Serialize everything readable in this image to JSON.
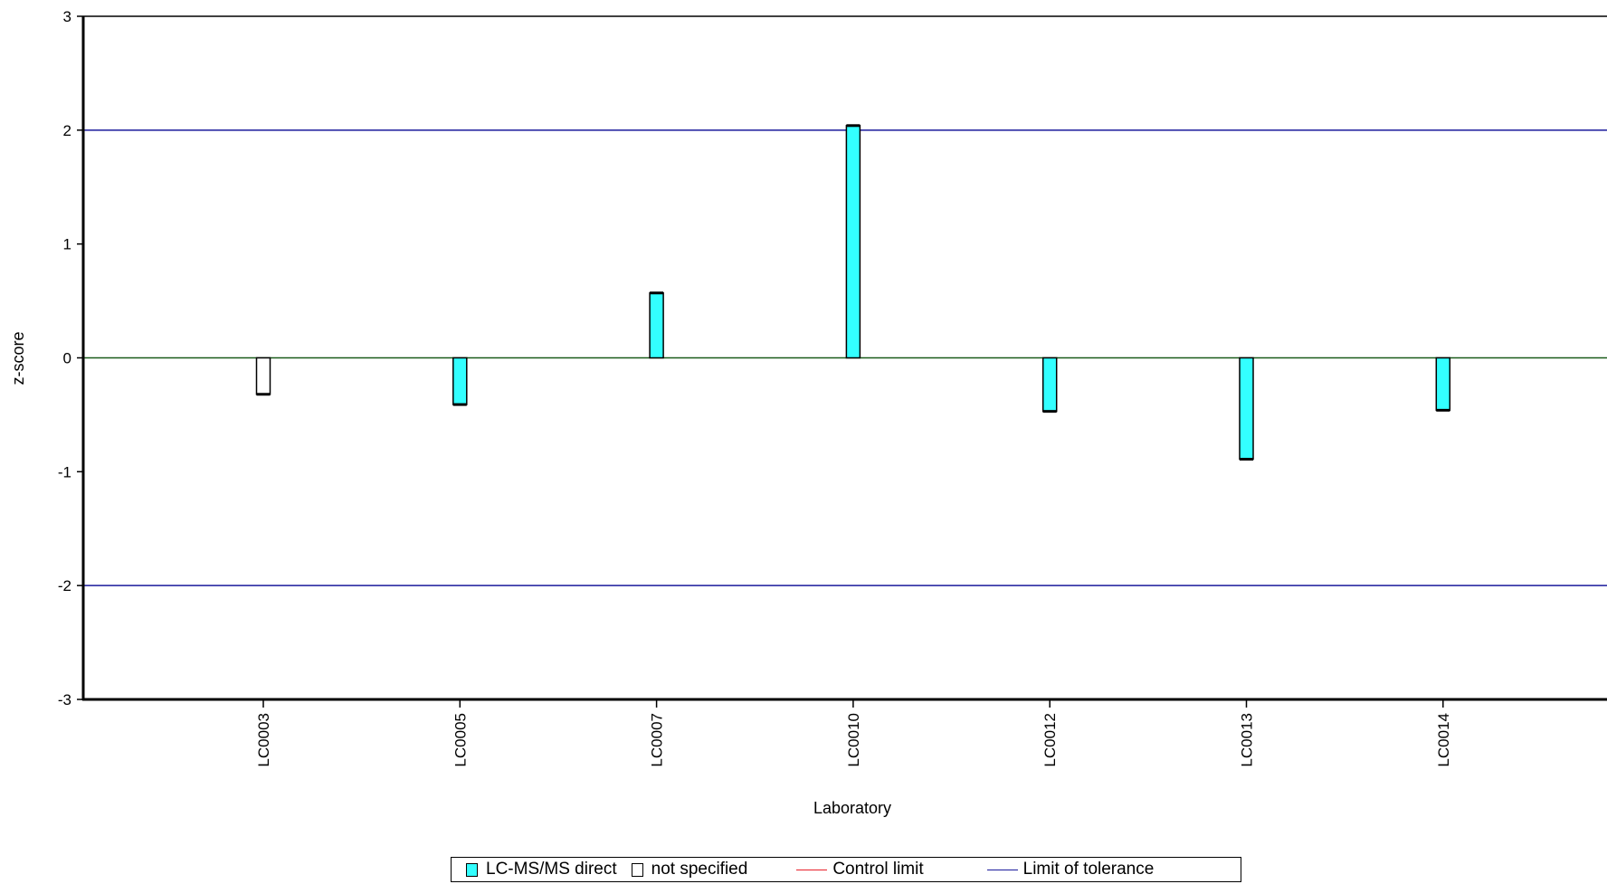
{
  "chart_data": {
    "type": "bar",
    "xlabel": "Laboratory",
    "ylabel": "z-score",
    "ylim": [
      -3,
      3
    ],
    "yticks": [
      "3",
      "2",
      "1",
      "0",
      "-1",
      "-2",
      "-3"
    ],
    "categories": [
      "LC0003",
      "LC0005",
      "LC0007",
      "LC0010",
      "LC0012",
      "LC0013",
      "LC0014"
    ],
    "values": [
      -0.32,
      -0.41,
      0.57,
      2.04,
      -0.47,
      -0.89,
      -0.46
    ],
    "methods": [
      "not specified",
      "LC-MS/MS direct",
      "LC-MS/MS direct",
      "LC-MS/MS direct",
      "LC-MS/MS direct",
      "LC-MS/MS direct",
      "LC-MS/MS direct"
    ],
    "reference_lines": [
      {
        "name": "Limit of tolerance",
        "values": [
          2,
          -2
        ],
        "color": "#1a1a9c"
      }
    ],
    "legend": {
      "placement": "bottom",
      "entries": [
        {
          "label": "LC-MS/MS direct",
          "kind": "box",
          "color": "#33ffff"
        },
        {
          "label": "not specified",
          "kind": "box",
          "color": "#ffffff"
        },
        {
          "label": "Control limit",
          "kind": "line",
          "color": "#e8202a"
        },
        {
          "label": "Limit of tolerance",
          "kind": "line",
          "color": "#1a1a9c"
        }
      ]
    },
    "colors": {
      "LC-MS/MS direct": "#33ffff",
      "not specified": "#ffffff",
      "zero_line": "#1a5c1a"
    }
  }
}
